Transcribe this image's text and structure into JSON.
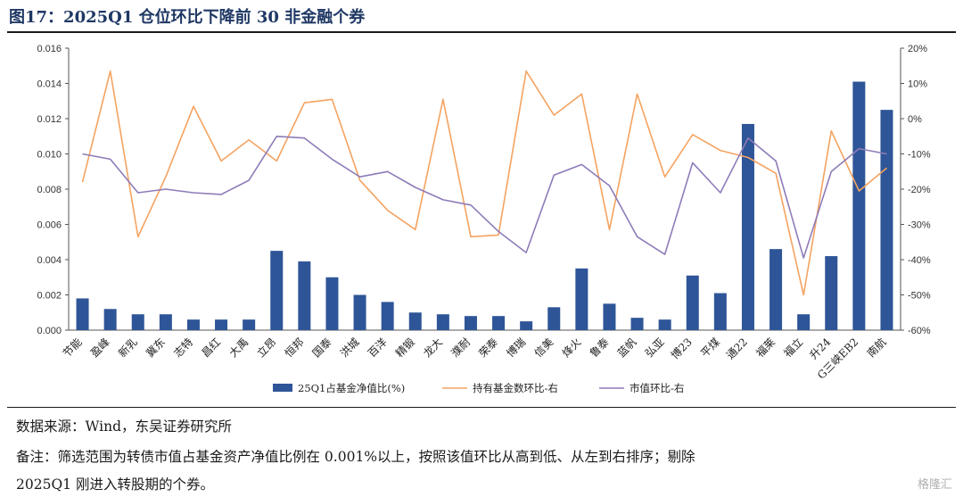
{
  "title": "图17：2025Q1 仓位环比下降前 30 非金融个券",
  "notes": {
    "source": "数据来源：Wind，东吴证券研究所",
    "remark_line1": "备注：筛选范围为转债市值占基金资产净值比例在 0.001%以上，按照该值环比从高到低、从左到右排序；剔除",
    "remark_line2": "2025Q1 刚进入转股期的个券。"
  },
  "watermark": "格隆汇",
  "colors": {
    "bar": "#2e5597",
    "orange": "#f4a361",
    "purple": "#8e7cb8"
  },
  "chart_data": {
    "type": "bar",
    "categories": [
      "节能",
      "盈峰",
      "新乳",
      "冀东",
      "志特",
      "昌红",
      "大禹",
      "立昂",
      "恒邦",
      "国泰",
      "洪城",
      "百洋",
      "精锻",
      "龙大",
      "濮耐",
      "荣泰",
      "博瑞",
      "信美",
      "烽火",
      "鲁泰",
      "蓝帆",
      "弘亚",
      "博23",
      "平煤",
      "通22",
      "福莱",
      "福立",
      "升24",
      "G三峡EB2",
      "南航"
    ],
    "series": [
      {
        "name": "25Q1占基金净值比(%)",
        "type": "bar",
        "axis": "left",
        "values": [
          0.0018,
          0.0012,
          0.0009,
          0.0009,
          0.0006,
          0.0006,
          0.0006,
          0.0045,
          0.0039,
          0.003,
          0.002,
          0.0016,
          0.001,
          0.0009,
          0.0008,
          0.0008,
          0.0005,
          0.0013,
          0.0035,
          0.0015,
          0.0007,
          0.0006,
          0.0031,
          0.0021,
          0.0117,
          0.0046,
          0.0009,
          0.0042,
          0.0141,
          0.0125
        ]
      },
      {
        "name": "持有基金数环比-右",
        "type": "line",
        "axis": "right",
        "values": [
          -0.18,
          0.135,
          -0.335,
          -0.165,
          0.035,
          -0.12,
          -0.06,
          -0.12,
          0.045,
          0.055,
          -0.175,
          -0.26,
          -0.315,
          0.055,
          -0.335,
          -0.33,
          0.135,
          0.01,
          0.07,
          -0.315,
          0.07,
          -0.165,
          -0.045,
          -0.09,
          -0.11,
          -0.155,
          -0.5,
          -0.035,
          -0.205,
          -0.14
        ]
      },
      {
        "name": "市值环比-右",
        "type": "line",
        "axis": "right",
        "values": [
          -0.1,
          -0.115,
          -0.21,
          -0.2,
          -0.21,
          -0.215,
          -0.175,
          -0.05,
          -0.055,
          -0.115,
          -0.165,
          -0.15,
          -0.195,
          -0.23,
          -0.245,
          -0.32,
          -0.38,
          -0.16,
          -0.13,
          -0.19,
          -0.335,
          -0.385,
          -0.125,
          -0.21,
          -0.055,
          -0.12,
          -0.395,
          -0.15,
          -0.085,
          -0.1
        ]
      }
    ],
    "yleft": {
      "ticks": [
        "0.000",
        "0.002",
        "0.004",
        "0.006",
        "0.008",
        "0.010",
        "0.012",
        "0.014",
        "0.016"
      ],
      "ylim": [
        0,
        0.016
      ]
    },
    "yright": {
      "ticks": [
        "-60%",
        "-50%",
        "-40%",
        "-30%",
        "-20%",
        "-10%",
        "0%",
        "10%",
        "20%"
      ],
      "ylim": [
        -0.6,
        0.2
      ]
    },
    "legend_position": "bottom",
    "grid": false
  }
}
